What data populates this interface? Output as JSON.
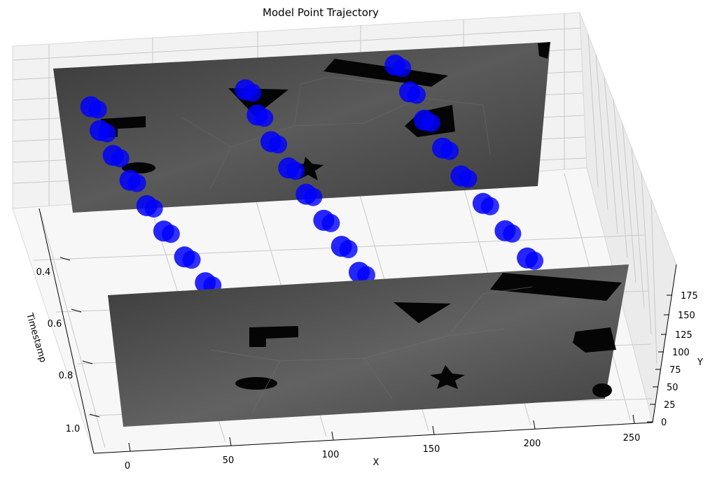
{
  "chart_data": {
    "type": "scatter",
    "projection": "3d",
    "title": "Model Point Trajectory",
    "xlabel": "X",
    "ylabel": "Y",
    "zlabel": "Timestamp",
    "x_ticks": [
      "0",
      "50",
      "100",
      "150",
      "200",
      "250"
    ],
    "y_ticks": [
      "0",
      "25",
      "50",
      "75",
      "100",
      "125",
      "150",
      "175"
    ],
    "z_ticks": [
      "0.4",
      "0.6",
      "0.8",
      "1.0"
    ],
    "xlim": [
      0,
      260
    ],
    "ylim": [
      0,
      180
    ],
    "zlim": [
      0.3,
      1.1
    ],
    "grid": true,
    "event_frames": [
      {
        "timestamp": 0.3,
        "image": "grayscale-event-frame"
      },
      {
        "timestamp": 1.0,
        "image": "grayscale-event-frame"
      }
    ],
    "series": [
      {
        "color": "#0000ff",
        "points": [
          {
            "x": 18,
            "y": 130,
            "z": 0.3
          },
          {
            "x": 20,
            "y": 128,
            "z": 0.38
          },
          {
            "x": 24,
            "y": 124,
            "z": 0.46
          },
          {
            "x": 30,
            "y": 120,
            "z": 0.54
          },
          {
            "x": 36,
            "y": 115,
            "z": 0.62
          },
          {
            "x": 42,
            "y": 110,
            "z": 0.7
          },
          {
            "x": 50,
            "y": 104,
            "z": 0.78
          },
          {
            "x": 58,
            "y": 98,
            "z": 0.86
          },
          {
            "x": 66,
            "y": 92,
            "z": 0.94
          },
          {
            "x": 72,
            "y": 86,
            "z": 1.0
          }
        ]
      },
      {
        "color": "#0000ff",
        "points": [
          {
            "x": 105,
            "y": 140,
            "z": 0.3
          },
          {
            "x": 108,
            "y": 136,
            "z": 0.38
          },
          {
            "x": 112,
            "y": 130,
            "z": 0.46
          },
          {
            "x": 118,
            "y": 124,
            "z": 0.54
          },
          {
            "x": 124,
            "y": 118,
            "z": 0.62
          },
          {
            "x": 130,
            "y": 112,
            "z": 0.7
          },
          {
            "x": 136,
            "y": 106,
            "z": 0.78
          },
          {
            "x": 142,
            "y": 100,
            "z": 0.86
          },
          {
            "x": 148,
            "y": 94,
            "z": 0.94
          },
          {
            "x": 152,
            "y": 88,
            "z": 1.0
          }
        ]
      },
      {
        "color": "#0000ff",
        "points": [
          {
            "x": 190,
            "y": 160,
            "z": 0.3
          },
          {
            "x": 194,
            "y": 154,
            "z": 0.38
          },
          {
            "x": 198,
            "y": 146,
            "z": 0.46
          },
          {
            "x": 204,
            "y": 138,
            "z": 0.54
          },
          {
            "x": 210,
            "y": 130,
            "z": 0.62
          },
          {
            "x": 218,
            "y": 122,
            "z": 0.7
          },
          {
            "x": 226,
            "y": 114,
            "z": 0.78
          },
          {
            "x": 234,
            "y": 106,
            "z": 0.86
          },
          {
            "x": 242,
            "y": 98,
            "z": 0.94
          },
          {
            "x": 248,
            "y": 92,
            "z": 1.0
          }
        ]
      }
    ]
  }
}
